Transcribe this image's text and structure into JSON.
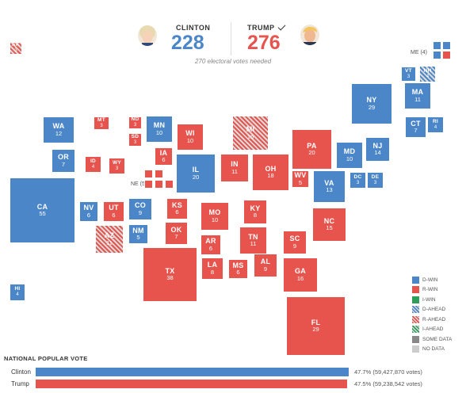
{
  "header": {
    "clinton": {
      "name": "CLINTON",
      "votes": "228",
      "color": "#4a86c8"
    },
    "trump": {
      "name": "TRUMP",
      "votes": "276",
      "color": "#e7534d"
    },
    "needed_text": "270 electoral votes needed"
  },
  "external_labels": {
    "ne": "NE (5)",
    "me": "ME (4)"
  },
  "states": [
    {
      "ab": "AK",
      "ev": "3",
      "status": "rahead"
    },
    {
      "ab": "WA",
      "ev": "12",
      "status": "dwin"
    },
    {
      "ab": "OR",
      "ev": "7",
      "status": "dwin"
    },
    {
      "ab": "CA",
      "ev": "55",
      "status": "dwin"
    },
    {
      "ab": "HI",
      "ev": "4",
      "status": "dwin"
    },
    {
      "ab": "MT",
      "ev": "3",
      "status": "rwin"
    },
    {
      "ab": "ID",
      "ev": "4",
      "status": "rwin"
    },
    {
      "ab": "WY",
      "ev": "3",
      "status": "rwin"
    },
    {
      "ab": "NV",
      "ev": "6",
      "status": "dwin"
    },
    {
      "ab": "UT",
      "ev": "6",
      "status": "rwin"
    },
    {
      "ab": "CO",
      "ev": "9",
      "status": "dwin"
    },
    {
      "ab": "AZ",
      "ev": "11",
      "status": "rahead"
    },
    {
      "ab": "NM",
      "ev": "5",
      "status": "dwin"
    },
    {
      "ab": "ND",
      "ev": "3",
      "status": "rwin"
    },
    {
      "ab": "SD",
      "ev": "3",
      "status": "rwin"
    },
    {
      "ab": "MN",
      "ev": "10",
      "status": "dwin"
    },
    {
      "ab": "IA",
      "ev": "6",
      "status": "rwin"
    },
    {
      "ab": "WI",
      "ev": "10",
      "status": "rwin"
    },
    {
      "ab": "IL",
      "ev": "20",
      "status": "dwin"
    },
    {
      "ab": "MI",
      "ev": "16",
      "status": "rahead"
    },
    {
      "ab": "IN",
      "ev": "11",
      "status": "rwin"
    },
    {
      "ab": "OH",
      "ev": "18",
      "status": "rwin"
    },
    {
      "ab": "KS",
      "ev": "6",
      "status": "rwin"
    },
    {
      "ab": "MO",
      "ev": "10",
      "status": "rwin"
    },
    {
      "ab": "KY",
      "ev": "8",
      "status": "rwin"
    },
    {
      "ab": "OK",
      "ev": "7",
      "status": "rwin"
    },
    {
      "ab": "AR",
      "ev": "6",
      "status": "rwin"
    },
    {
      "ab": "TN",
      "ev": "11",
      "status": "rwin"
    },
    {
      "ab": "TX",
      "ev": "38",
      "status": "rwin"
    },
    {
      "ab": "LA",
      "ev": "8",
      "status": "rwin"
    },
    {
      "ab": "MS",
      "ev": "6",
      "status": "rwin"
    },
    {
      "ab": "AL",
      "ev": "9",
      "status": "rwin"
    },
    {
      "ab": "GA",
      "ev": "16",
      "status": "rwin"
    },
    {
      "ab": "FL",
      "ev": "29",
      "status": "rwin"
    },
    {
      "ab": "SC",
      "ev": "9",
      "status": "rwin"
    },
    {
      "ab": "NC",
      "ev": "15",
      "status": "rwin"
    },
    {
      "ab": "VA",
      "ev": "13",
      "status": "dwin"
    },
    {
      "ab": "WV",
      "ev": "5",
      "status": "rwin"
    },
    {
      "ab": "PA",
      "ev": "20",
      "status": "rwin"
    },
    {
      "ab": "MD",
      "ev": "10",
      "status": "dwin"
    },
    {
      "ab": "DC",
      "ev": "3",
      "status": "dwin"
    },
    {
      "ab": "DE",
      "ev": "3",
      "status": "dwin"
    },
    {
      "ab": "NJ",
      "ev": "14",
      "status": "dwin"
    },
    {
      "ab": "NY",
      "ev": "29",
      "status": "dwin"
    },
    {
      "ab": "CT",
      "ev": "7",
      "status": "dwin"
    },
    {
      "ab": "RI",
      "ev": "4",
      "status": "dwin"
    },
    {
      "ab": "MA",
      "ev": "11",
      "status": "dwin"
    },
    {
      "ab": "VT",
      "ev": "3",
      "status": "dwin"
    },
    {
      "ab": "NH",
      "ev": "4",
      "status": "dahead"
    }
  ],
  "legend": [
    {
      "label": "D-WIN",
      "color": "#4a86c8",
      "pattern": "solid"
    },
    {
      "label": "R-WIN",
      "color": "#e7534d",
      "pattern": "solid"
    },
    {
      "label": "I-WIN",
      "color": "#2e9e5b",
      "pattern": "solid"
    },
    {
      "label": "D-AHEAD",
      "color": "#4a86c8",
      "pattern": "hatch"
    },
    {
      "label": "R-AHEAD",
      "color": "#e7534d",
      "pattern": "hatch"
    },
    {
      "label": "I-AHEAD",
      "color": "#2e9e5b",
      "pattern": "hatch"
    },
    {
      "label": "SOME DATA",
      "color": "#888888",
      "pattern": "solid"
    },
    {
      "label": "NO DATA",
      "color": "#cccccc",
      "pattern": "solid"
    }
  ],
  "popular_vote": {
    "title": "NATIONAL POPULAR VOTE",
    "rows": [
      {
        "name": "Clinton",
        "pct": 47.7,
        "text": "47.7% (59,427,870 votes)",
        "color": "#4a86c8"
      },
      {
        "name": "Trump",
        "pct": 47.5,
        "text": "47.5% (59,238,542 votes)",
        "color": "#e7534d"
      }
    ]
  }
}
